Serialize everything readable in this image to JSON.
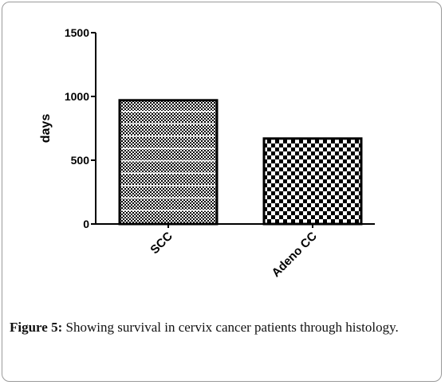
{
  "chart_data": {
    "type": "bar",
    "categories": [
      "SCC",
      "Adeno CC"
    ],
    "values": [
      970,
      670
    ],
    "ylabel": "days",
    "xlabel": "",
    "ylim": [
      0,
      1500
    ],
    "yticks": [
      0,
      500,
      1000,
      1500
    ],
    "grid": false,
    "legend": "none",
    "bar_patterns": [
      "dense-checker-with-white-stripes",
      "large-checker"
    ],
    "colors": {
      "bar_fill": "#000000",
      "bar_stroke": "#000000",
      "axis": "#000000"
    }
  },
  "caption": {
    "label": "Figure 5:",
    "text": " Showing survival in cervix cancer patients through histology."
  }
}
